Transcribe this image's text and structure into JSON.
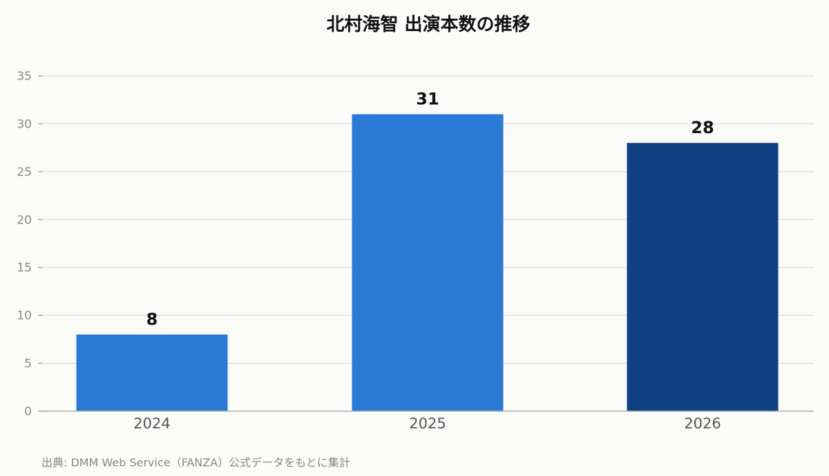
{
  "chart_data": {
    "type": "bar",
    "title": "北村海智 出演本数の推移",
    "categories": [
      "2024",
      "2025",
      "2026"
    ],
    "values": [
      8,
      31,
      28
    ],
    "bar_colors": [
      "#2a7ad6",
      "#2a7ad6",
      "#114185"
    ],
    "xlabel": "",
    "ylabel": "",
    "ylim": [
      0,
      35
    ],
    "yticks": [
      0,
      5,
      10,
      15,
      20,
      25,
      30,
      35
    ],
    "grid": true,
    "legend": "none"
  },
  "footer": {
    "source": "出典: DMM Web Service（FANZA）公式データをもとに集計"
  },
  "colors": {
    "background": "#fbfbf9",
    "grid": "#e0e0e0",
    "axis": "#aaaaaa",
    "tick_text": "#888888",
    "category_text": "#555555"
  }
}
